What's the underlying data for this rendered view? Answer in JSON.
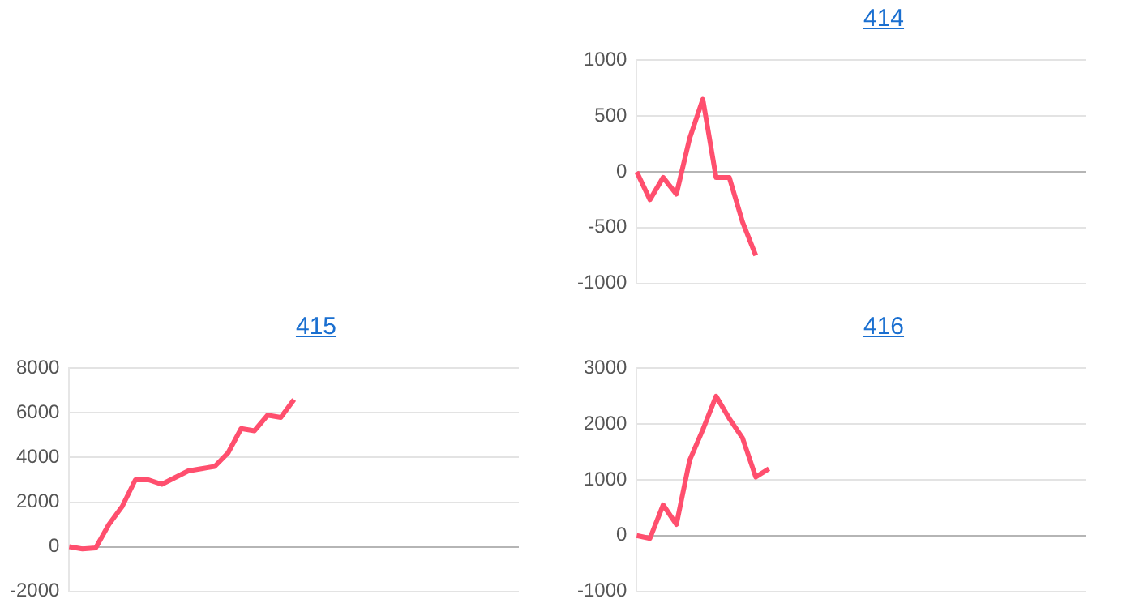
{
  "chart_data": [
    {
      "type": "line",
      "title": "414",
      "categories": [
        null,
        null,
        null,
        null,
        null,
        null,
        null,
        null,
        null,
        null,
        null,
        null,
        null,
        null,
        null,
        null,
        null,
        null,
        null,
        null,
        null,
        null,
        null,
        null,
        null,
        null,
        null,
        null,
        null,
        null,
        null,
        null,
        null,
        null,
        null
      ],
      "series": [
        {
          "color": "#ff4f6e",
          "values": [
            0,
            -250,
            -50,
            -200,
            300,
            650,
            -50,
            -50,
            -450,
            -750,
            null,
            null,
            null,
            null,
            null,
            null,
            null,
            null,
            null,
            null,
            null,
            null,
            null,
            null,
            null,
            null,
            null,
            null,
            null,
            null,
            null,
            null,
            null,
            null,
            null
          ]
        }
      ],
      "ylim": [
        -1000,
        1000
      ],
      "yticks": [
        -1000,
        -500,
        0,
        500,
        1000
      ],
      "grid": "y",
      "tick_labels": "y",
      "legend": false,
      "marker": "none"
    },
    {
      "type": "line",
      "title": "415",
      "categories": [
        null,
        null,
        null,
        null,
        null,
        null,
        null,
        null,
        null,
        null,
        null,
        null,
        null,
        null,
        null,
        null,
        null,
        null,
        null,
        null,
        null,
        null,
        null,
        null,
        null,
        null,
        null,
        null,
        null,
        null,
        null,
        null,
        null,
        null,
        null
      ],
      "series": [
        {
          "color": "#ff4f6e",
          "values": [
            0,
            -100,
            -50,
            1000,
            1800,
            3000,
            3000,
            2800,
            3100,
            3400,
            3500,
            3600,
            4200,
            5300,
            5200,
            5900,
            5800,
            6600,
            null,
            null,
            null,
            null,
            null,
            null,
            null,
            null,
            null,
            null,
            null,
            null,
            null,
            null,
            null,
            null,
            null
          ]
        }
      ],
      "ylim": [
        -2000,
        8000
      ],
      "yticks": [
        -2000,
        0,
        2000,
        4000,
        6000,
        8000
      ],
      "grid": "y",
      "tick_labels": "y",
      "legend": false,
      "marker": "none"
    },
    {
      "type": "line",
      "title": "416",
      "categories": [
        null,
        null,
        null,
        null,
        null,
        null,
        null,
        null,
        null,
        null,
        null,
        null,
        null,
        null,
        null,
        null,
        null,
        null,
        null,
        null,
        null,
        null,
        null,
        null,
        null,
        null,
        null,
        null,
        null,
        null,
        null,
        null,
        null,
        null,
        null
      ],
      "series": [
        {
          "color": "#ff4f6e",
          "values": [
            0,
            -50,
            550,
            200,
            1350,
            1900,
            2500,
            2100,
            1750,
            1050,
            1200,
            null,
            null,
            null,
            null,
            null,
            null,
            null,
            null,
            null,
            null,
            null,
            null,
            null,
            null,
            null,
            null,
            null,
            null,
            null,
            null,
            null,
            null,
            null,
            null
          ]
        }
      ],
      "ylim": [
        -1000,
        3000
      ],
      "yticks": [
        -1000,
        0,
        1000,
        2000,
        3000
      ],
      "grid": "y",
      "tick_labels": "y",
      "legend": false,
      "marker": "none"
    }
  ]
}
